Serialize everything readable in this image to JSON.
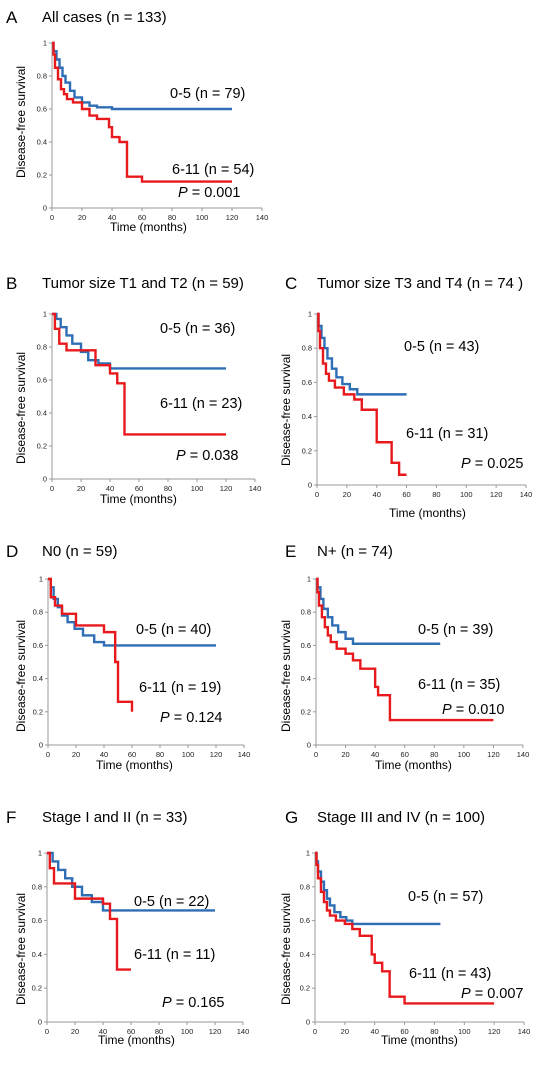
{
  "colors": {
    "group_low": "#2f6db5",
    "group_high": "#e8191c",
    "axis": "#9a9a9a"
  },
  "chart_data": [
    {
      "letter": "A",
      "type": "line",
      "title": "All cases (n = 133)",
      "xlabel": "Time (months)",
      "ylabel": "Disease-free survival",
      "xlim": [
        0,
        140
      ],
      "ylim": [
        0,
        1
      ],
      "xticks": [
        0,
        20,
        40,
        60,
        80,
        100,
        120,
        140
      ],
      "yticks": [
        0,
        0.2,
        0.4,
        0.6,
        0.8,
        1
      ],
      "p_prefix": "P",
      "p_value": "= 0.001",
      "series": [
        {
          "name": "0-5 (n = 79)",
          "color": "#2f6db5",
          "x": [
            0,
            1,
            3,
            5,
            7,
            9,
            12,
            15,
            20,
            25,
            30,
            40,
            120
          ],
          "y": [
            1,
            0.95,
            0.9,
            0.85,
            0.8,
            0.76,
            0.71,
            0.67,
            0.64,
            0.62,
            0.61,
            0.6,
            0.6
          ]
        },
        {
          "name": "6-11 (n = 54)",
          "color": "#e8191c",
          "x": [
            0,
            1,
            2,
            4,
            6,
            8,
            10,
            14,
            20,
            25,
            30,
            38,
            40,
            45,
            50,
            60,
            120
          ],
          "y": [
            1,
            0.93,
            0.85,
            0.78,
            0.72,
            0.69,
            0.66,
            0.64,
            0.6,
            0.56,
            0.54,
            0.49,
            0.43,
            0.4,
            0.19,
            0.16,
            0.16
          ]
        }
      ]
    },
    {
      "letter": "B",
      "type": "line",
      "title": "Tumor size T1 and T2 (n = 59)",
      "xlabel": "Time (months)",
      "ylabel": "Disease-free survival",
      "xlim": [
        0,
        140
      ],
      "ylim": [
        0,
        1
      ],
      "xticks": [
        0,
        20,
        40,
        60,
        80,
        100,
        120,
        140
      ],
      "yticks": [
        0,
        0.2,
        0.4,
        0.6,
        0.8,
        1
      ],
      "p_prefix": "P",
      "p_value": "= 0.038",
      "series": [
        {
          "name": "0-5 (n = 36)",
          "color": "#2f6db5",
          "x": [
            0,
            3,
            6,
            10,
            14,
            20,
            25,
            32,
            40,
            120
          ],
          "y": [
            1,
            0.97,
            0.92,
            0.87,
            0.82,
            0.77,
            0.72,
            0.7,
            0.67,
            0.67
          ]
        },
        {
          "name": "6-11 (n = 23)",
          "color": "#e8191c",
          "x": [
            0,
            2,
            5,
            10,
            20,
            30,
            40,
            45,
            50,
            120
          ],
          "y": [
            1,
            0.91,
            0.82,
            0.78,
            0.78,
            0.69,
            0.64,
            0.58,
            0.27,
            0.27
          ]
        }
      ]
    },
    {
      "letter": "C",
      "type": "line",
      "title": "Tumor size T3 and T4 (n = 74 )",
      "xlabel": "Time (months)",
      "ylabel": "Disease-free survival",
      "xlim": [
        0,
        140
      ],
      "ylim": [
        0,
        1
      ],
      "xticks": [
        0,
        20,
        40,
        60,
        80,
        100,
        120,
        140
      ],
      "yticks": [
        0,
        0.2,
        0.4,
        0.6,
        0.8,
        1
      ],
      "p_prefix": "P",
      "p_value": "= 0.025",
      "series": [
        {
          "name": "0-5 (n = 43)",
          "color": "#2f6db5",
          "x": [
            0,
            1,
            3,
            5,
            7,
            10,
            13,
            17,
            22,
            27,
            60
          ],
          "y": [
            1,
            0.93,
            0.86,
            0.8,
            0.74,
            0.68,
            0.63,
            0.59,
            0.56,
            0.53,
            0.53
          ]
        },
        {
          "name": "6-11 (n = 31)",
          "color": "#e8191c",
          "x": [
            0,
            1,
            2,
            4,
            6,
            8,
            12,
            18,
            25,
            30,
            40,
            50,
            55,
            60
          ],
          "y": [
            1,
            0.9,
            0.8,
            0.71,
            0.65,
            0.61,
            0.57,
            0.53,
            0.5,
            0.44,
            0.25,
            0.13,
            0.06,
            0.06
          ]
        }
      ]
    },
    {
      "letter": "D",
      "type": "line",
      "title": "N0  (n = 59)",
      "xlabel": "Time (months)",
      "ylabel": "Disease-free survival",
      "xlim": [
        0,
        140
      ],
      "ylim": [
        0,
        1
      ],
      "xticks": [
        0,
        20,
        40,
        60,
        80,
        100,
        120,
        140
      ],
      "yticks": [
        0,
        0.2,
        0.4,
        0.6,
        0.8,
        1
      ],
      "p_prefix": "P",
      "p_value": "= 0.124",
      "series": [
        {
          "name": "0-5 (n = 40)",
          "color": "#2f6db5",
          "x": [
            0,
            2,
            4,
            7,
            10,
            14,
            19,
            25,
            33,
            40,
            120
          ],
          "y": [
            1,
            0.95,
            0.88,
            0.83,
            0.78,
            0.74,
            0.7,
            0.66,
            0.62,
            0.6,
            0.6
          ]
        },
        {
          "name": "6-11 (n = 19)",
          "color": "#e8191c",
          "x": [
            0,
            2,
            5,
            10,
            20,
            30,
            40,
            48,
            50,
            55,
            60
          ],
          "y": [
            1,
            0.89,
            0.84,
            0.79,
            0.72,
            0.72,
            0.68,
            0.5,
            0.26,
            0.26,
            0.2
          ]
        }
      ]
    },
    {
      "letter": "E",
      "type": "line",
      "title": "N+  (n = 74)",
      "xlabel": "Time (months)",
      "ylabel": "Disease-free survival",
      "xlim": [
        0,
        140
      ],
      "ylim": [
        0,
        1
      ],
      "xticks": [
        0,
        20,
        40,
        60,
        80,
        100,
        120,
        140
      ],
      "yticks": [
        0,
        0.2,
        0.4,
        0.6,
        0.8,
        1
      ],
      "p_prefix": "P",
      "p_value": "= 0.010",
      "series": [
        {
          "name": "0-5 (n = 39)",
          "color": "#2f6db5",
          "x": [
            0,
            1,
            3,
            5,
            8,
            11,
            15,
            20,
            25,
            84
          ],
          "y": [
            1,
            0.95,
            0.88,
            0.82,
            0.77,
            0.72,
            0.68,
            0.64,
            0.61,
            0.61
          ]
        },
        {
          "name": "6-11 (n = 35)",
          "color": "#e8191c",
          "x": [
            0,
            1,
            2,
            4,
            6,
            8,
            10,
            14,
            20,
            25,
            30,
            40,
            42,
            50,
            120
          ],
          "y": [
            1,
            0.92,
            0.84,
            0.77,
            0.71,
            0.66,
            0.62,
            0.58,
            0.55,
            0.51,
            0.46,
            0.35,
            0.3,
            0.15,
            0.15
          ]
        }
      ]
    },
    {
      "letter": "F",
      "type": "line",
      "title": "Stage I and II (n = 33)",
      "xlabel": "Time (months)",
      "ylabel": "Disease-free survival",
      "xlim": [
        0,
        140
      ],
      "ylim": [
        0,
        1
      ],
      "xticks": [
        0,
        20,
        40,
        60,
        80,
        100,
        120,
        140
      ],
      "yticks": [
        0,
        0.2,
        0.4,
        0.6,
        0.8,
        1
      ],
      "p_prefix": "P",
      "p_value": "= 0.165",
      "series": [
        {
          "name": "0-5 (n = 22)",
          "color": "#2f6db5",
          "x": [
            0,
            4,
            8,
            13,
            18,
            25,
            32,
            40,
            120
          ],
          "y": [
            1,
            0.95,
            0.9,
            0.85,
            0.8,
            0.75,
            0.71,
            0.66,
            0.66
          ]
        },
        {
          "name": "6-11 (n = 11)",
          "color": "#e8191c",
          "x": [
            0,
            2,
            5,
            15,
            20,
            30,
            40,
            45,
            50,
            60
          ],
          "y": [
            1,
            0.91,
            0.82,
            0.82,
            0.73,
            0.73,
            0.7,
            0.61,
            0.31,
            0.31
          ]
        }
      ]
    },
    {
      "letter": "G",
      "type": "line",
      "title": "Stage III and IV (n = 100)",
      "xlabel": "Time (months)",
      "ylabel": "Disease-free survival",
      "xlim": [
        0,
        140
      ],
      "ylim": [
        0,
        1
      ],
      "xticks": [
        0,
        20,
        40,
        60,
        80,
        100,
        120,
        140
      ],
      "yticks": [
        0,
        0.2,
        0.4,
        0.6,
        0.8,
        1
      ],
      "p_prefix": "P",
      "p_value": "= 0.007",
      "series": [
        {
          "name": "0-5 (n = 57)",
          "color": "#2f6db5",
          "x": [
            0,
            1,
            2,
            4,
            6,
            8,
            10,
            13,
            17,
            21,
            25,
            84
          ],
          "y": [
            1,
            0.95,
            0.89,
            0.83,
            0.78,
            0.73,
            0.69,
            0.65,
            0.62,
            0.6,
            0.58,
            0.58
          ]
        },
        {
          "name": "6-11 (n = 43)",
          "color": "#e8191c",
          "x": [
            0,
            1,
            2,
            4,
            6,
            8,
            10,
            14,
            20,
            25,
            30,
            38,
            40,
            45,
            50,
            60,
            120
          ],
          "y": [
            1,
            0.93,
            0.85,
            0.77,
            0.71,
            0.66,
            0.63,
            0.6,
            0.58,
            0.55,
            0.51,
            0.4,
            0.35,
            0.3,
            0.15,
            0.11,
            0.11
          ]
        }
      ]
    }
  ]
}
